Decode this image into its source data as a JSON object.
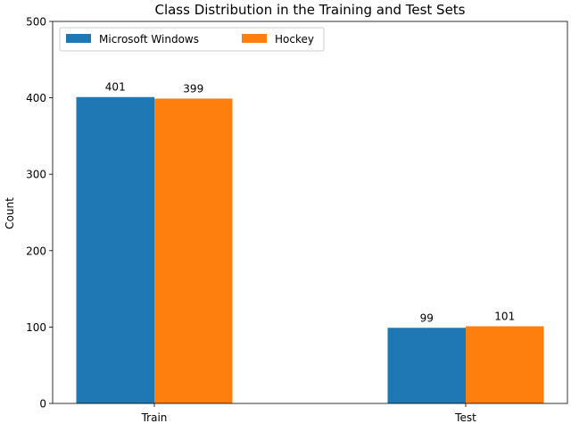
{
  "chart_data": {
    "type": "bar",
    "title": "Class Distribution in the Training and Test Sets",
    "xlabel": "",
    "ylabel": "Count",
    "categories": [
      "Train",
      "Test"
    ],
    "series": [
      {
        "name": "Microsoft Windows",
        "values": [
          401,
          99
        ],
        "color": "#1f77b4"
      },
      {
        "name": "Hockey",
        "values": [
          399,
          101
        ],
        "color": "#ff7f0e"
      }
    ],
    "ylim": [
      0,
      500
    ],
    "yticks": [
      0,
      100,
      200,
      300,
      400,
      500
    ],
    "data_labels": true,
    "grid": false,
    "legend": {
      "position": "top-left",
      "columns": 2
    }
  }
}
